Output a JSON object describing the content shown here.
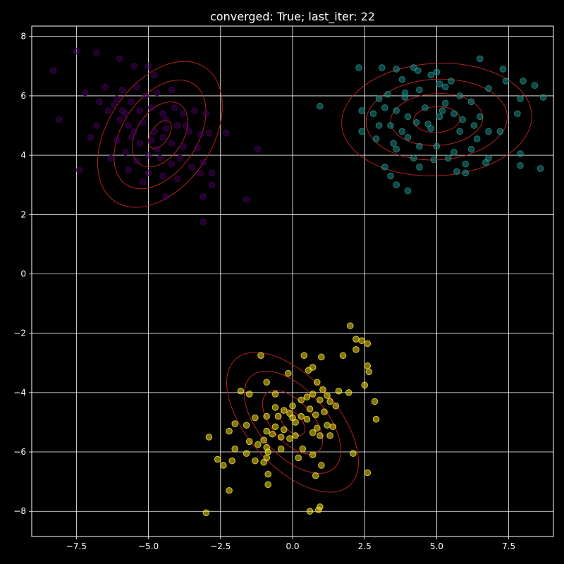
{
  "chart_data": {
    "type": "scatter",
    "title": "converged: True; last_iter: 22",
    "xlabel": "",
    "ylabel": "",
    "xlim": [
      -9.05,
      9.05
    ],
    "ylim": [
      -8.85,
      8.35
    ],
    "xticks": [
      -7.5,
      -5.0,
      -2.5,
      0.0,
      2.5,
      5.0,
      7.5
    ],
    "xtick_labels": [
      "−7.5",
      "−5.0",
      "−2.5",
      "0.0",
      "2.5",
      "5.0",
      "7.5"
    ],
    "yticks": [
      -8,
      -6,
      -4,
      -2,
      0,
      2,
      4,
      6,
      8
    ],
    "ytick_labels": [
      "−8",
      "−6",
      "−4",
      "−2",
      "0",
      "2",
      "4",
      "6",
      "8"
    ],
    "grid": true,
    "background": "#000000",
    "foreground": "#ffffff",
    "contour_color": "#b22222",
    "series": [
      {
        "color": "#440154",
        "points": [
          [
            -8.3,
            6.85
          ],
          [
            -7.5,
            7.5
          ],
          [
            -6.8,
            7.45
          ],
          [
            -6.0,
            7.25
          ],
          [
            -5.5,
            7.0
          ],
          [
            -5.0,
            7.0
          ],
          [
            -4.8,
            6.7
          ],
          [
            -7.2,
            6.1
          ],
          [
            -6.5,
            6.3
          ],
          [
            -5.9,
            6.2
          ],
          [
            -5.4,
            6.3
          ],
          [
            -5.1,
            6.0
          ],
          [
            -4.7,
            6.1
          ],
          [
            -6.7,
            5.8
          ],
          [
            -6.2,
            5.7
          ],
          [
            -5.9,
            5.5
          ],
          [
            -5.6,
            5.8
          ],
          [
            -5.3,
            5.5
          ],
          [
            -4.9,
            5.6
          ],
          [
            -4.5,
            5.4
          ],
          [
            -4.1,
            5.6
          ],
          [
            -3.8,
            5.4
          ],
          [
            -3.4,
            5.5
          ],
          [
            -3.0,
            5.4
          ],
          [
            -8.1,
            5.2
          ],
          [
            -6.8,
            5.0
          ],
          [
            -6.0,
            5.2
          ],
          [
            -5.7,
            5.0
          ],
          [
            -5.2,
            5.1
          ],
          [
            -4.8,
            4.8
          ],
          [
            -4.4,
            4.9
          ],
          [
            -4.0,
            5.0
          ],
          [
            -3.6,
            4.8
          ],
          [
            -3.2,
            4.7
          ],
          [
            -2.9,
            4.75
          ],
          [
            -7.0,
            4.6
          ],
          [
            -6.1,
            4.5
          ],
          [
            -5.6,
            4.6
          ],
          [
            -5.3,
            4.4
          ],
          [
            -4.9,
            4.5
          ],
          [
            -4.5,
            4.6
          ],
          [
            -4.2,
            4.4
          ],
          [
            -3.8,
            4.3
          ],
          [
            -3.3,
            4.25
          ],
          [
            -2.3,
            4.75
          ],
          [
            -1.2,
            4.2
          ],
          [
            -6.3,
            3.9
          ],
          [
            -5.8,
            4.1
          ],
          [
            -5.4,
            3.8
          ],
          [
            -5.0,
            4.0
          ],
          [
            -4.6,
            3.9
          ],
          [
            -4.2,
            3.7
          ],
          [
            -3.9,
            3.9
          ],
          [
            -3.5,
            3.6
          ],
          [
            -3.1,
            3.75
          ],
          [
            -2.8,
            3.4
          ],
          [
            -7.4,
            3.5
          ],
          [
            -5.7,
            3.5
          ],
          [
            -5.0,
            3.4
          ],
          [
            -4.5,
            3.3
          ],
          [
            -4.0,
            3.2
          ],
          [
            -3.2,
            3.4
          ],
          [
            -2.8,
            3.0
          ],
          [
            -5.2,
            3.1
          ],
          [
            -4.4,
            2.6
          ],
          [
            -3.1,
            2.6
          ],
          [
            -1.6,
            2.5
          ],
          [
            -3.1,
            1.75
          ],
          [
            -6.1,
            5.9
          ],
          [
            -4.4,
            5.2
          ],
          [
            -5.5,
            4.8
          ],
          [
            -4.7,
            4.2
          ],
          [
            -5.8,
            5.4
          ],
          [
            -3.7,
            5.0
          ],
          [
            -4.2,
            6.2
          ],
          [
            -6.4,
            5.5
          ]
        ]
      },
      {
        "color": "#21918c",
        "points": [
          [
            2.3,
            6.95
          ],
          [
            3.1,
            6.95
          ],
          [
            3.6,
            6.9
          ],
          [
            4.2,
            6.95
          ],
          [
            4.35,
            6.85
          ],
          [
            5.0,
            6.8
          ],
          [
            6.5,
            7.25
          ],
          [
            7.3,
            6.9
          ],
          [
            7.4,
            6.5
          ],
          [
            8.0,
            6.5
          ],
          [
            8.4,
            6.35
          ],
          [
            4.8,
            6.7
          ],
          [
            5.5,
            6.5
          ],
          [
            3.8,
            6.55
          ],
          [
            5.1,
            6.4
          ],
          [
            3.0,
            5.9
          ],
          [
            3.3,
            6.05
          ],
          [
            3.9,
            6.1
          ],
          [
            4.4,
            6.2
          ],
          [
            5.3,
            6.3
          ],
          [
            5.8,
            6.0
          ],
          [
            6.8,
            6.25
          ],
          [
            7.9,
            5.9
          ],
          [
            8.7,
            5.95
          ],
          [
            2.4,
            5.5
          ],
          [
            2.8,
            5.4
          ],
          [
            3.2,
            5.6
          ],
          [
            3.6,
            5.5
          ],
          [
            4.0,
            5.3
          ],
          [
            4.6,
            5.6
          ],
          [
            5.2,
            5.5
          ],
          [
            5.6,
            5.4
          ],
          [
            6.2,
            5.8
          ],
          [
            6.5,
            5.3
          ],
          [
            7.8,
            5.4
          ],
          [
            0.95,
            5.65
          ],
          [
            2.4,
            4.8
          ],
          [
            3.0,
            5.0
          ],
          [
            3.4,
            5.0
          ],
          [
            3.8,
            4.8
          ],
          [
            4.3,
            5.1
          ],
          [
            4.8,
            4.9
          ],
          [
            5.1,
            5.3
          ],
          [
            5.8,
            4.8
          ],
          [
            6.3,
            5.0
          ],
          [
            6.8,
            4.8
          ],
          [
            7.2,
            4.8
          ],
          [
            2.9,
            4.55
          ],
          [
            3.5,
            4.4
          ],
          [
            4.0,
            4.6
          ],
          [
            4.4,
            4.3
          ],
          [
            5.0,
            4.3
          ],
          [
            5.6,
            4.1
          ],
          [
            6.2,
            4.2
          ],
          [
            6.8,
            3.9
          ],
          [
            3.2,
            3.6
          ],
          [
            3.6,
            4.2
          ],
          [
            4.2,
            3.9
          ],
          [
            4.9,
            3.85
          ],
          [
            5.4,
            3.9
          ],
          [
            6.0,
            3.7
          ],
          [
            6.7,
            3.75
          ],
          [
            3.4,
            3.3
          ],
          [
            4.4,
            3.6
          ],
          [
            5.7,
            3.45
          ],
          [
            6.0,
            3.4
          ],
          [
            7.9,
            3.65
          ],
          [
            8.6,
            3.55
          ],
          [
            3.6,
            3.0
          ],
          [
            4.0,
            2.8
          ],
          [
            7.9,
            4.05
          ],
          [
            5.3,
            5.75
          ],
          [
            4.7,
            5.05
          ],
          [
            5.9,
            5.2
          ],
          [
            3.9,
            5.95
          ],
          [
            6.4,
            4.55
          ]
        ]
      },
      {
        "color": "#fde725",
        "points": [
          [
            2.0,
            -1.75
          ],
          [
            2.2,
            -2.2
          ],
          [
            2.4,
            -2.25
          ],
          [
            2.6,
            -2.35
          ],
          [
            2.2,
            -2.55
          ],
          [
            -1.1,
            -2.75
          ],
          [
            0.4,
            -2.75
          ],
          [
            1.0,
            -2.8
          ],
          [
            1.75,
            -2.75
          ],
          [
            0.7,
            -3.15
          ],
          [
            0.55,
            -3.25
          ],
          [
            2.6,
            -3.1
          ],
          [
            2.65,
            -3.3
          ],
          [
            -0.15,
            -3.35
          ],
          [
            -0.9,
            -3.65
          ],
          [
            0.85,
            -3.65
          ],
          [
            1.6,
            -3.95
          ],
          [
            1.95,
            -4.0
          ],
          [
            2.5,
            -3.75
          ],
          [
            -1.8,
            -3.95
          ],
          [
            -1.5,
            -4.05
          ],
          [
            -0.6,
            -4.05
          ],
          [
            0.7,
            -4.05
          ],
          [
            1.05,
            -3.9
          ],
          [
            1.2,
            -4.1
          ],
          [
            2.85,
            -4.3
          ],
          [
            0.3,
            -4.25
          ],
          [
            0.5,
            -4.15
          ],
          [
            0.95,
            -4.25
          ],
          [
            1.3,
            -4.3
          ],
          [
            -0.6,
            -4.5
          ],
          [
            -0.3,
            -4.6
          ],
          [
            0.0,
            -4.45
          ],
          [
            0.6,
            -4.55
          ],
          [
            1.5,
            -4.45
          ],
          [
            -1.3,
            -4.85
          ],
          [
            -0.9,
            -4.8
          ],
          [
            -0.5,
            -4.8
          ],
          [
            -0.1,
            -4.7
          ],
          [
            0.3,
            -4.8
          ],
          [
            0.8,
            -4.75
          ],
          [
            1.1,
            -4.65
          ],
          [
            2.9,
            -4.9
          ],
          [
            -2.0,
            -5.05
          ],
          [
            -1.6,
            -5.1
          ],
          [
            -0.9,
            -5.3
          ],
          [
            -0.6,
            -5.15
          ],
          [
            -0.3,
            -5.25
          ],
          [
            0.1,
            -5.0
          ],
          [
            0.5,
            -4.9
          ],
          [
            0.85,
            -5.2
          ],
          [
            1.2,
            -5.1
          ],
          [
            1.4,
            -5.15
          ],
          [
            -2.2,
            -5.3
          ],
          [
            -1.0,
            -5.6
          ],
          [
            -0.7,
            -5.4
          ],
          [
            -0.4,
            -5.5
          ],
          [
            0.1,
            -5.45
          ],
          [
            0.7,
            -5.35
          ],
          [
            0.95,
            -5.45
          ],
          [
            1.3,
            -5.45
          ],
          [
            -2.9,
            -5.5
          ],
          [
            -1.5,
            -5.65
          ],
          [
            -1.2,
            -5.75
          ],
          [
            -0.9,
            -5.85
          ],
          [
            -0.4,
            -5.9
          ],
          [
            0.35,
            -5.9
          ],
          [
            -2.0,
            -5.9
          ],
          [
            -0.85,
            -6.0
          ],
          [
            -1.6,
            -6.05
          ],
          [
            -2.1,
            -6.3
          ],
          [
            -1.3,
            -6.3
          ],
          [
            -1.0,
            -6.35
          ],
          [
            -0.9,
            -6.2
          ],
          [
            0.2,
            -6.2
          ],
          [
            0.7,
            -6.1
          ],
          [
            2.1,
            -6.05
          ],
          [
            -2.6,
            -6.25
          ],
          [
            -2.4,
            -6.45
          ],
          [
            1.0,
            -6.45
          ],
          [
            -0.85,
            -6.75
          ],
          [
            0.8,
            -6.8
          ],
          [
            2.6,
            -6.7
          ],
          [
            -0.85,
            -7.1
          ],
          [
            -2.2,
            -7.3
          ],
          [
            -3.0,
            -8.05
          ],
          [
            0.6,
            -8.0
          ],
          [
            0.9,
            -7.95
          ],
          [
            0.95,
            -7.85
          ],
          [
            -0.1,
            -5.55
          ],
          [
            0.0,
            -4.85
          ]
        ]
      }
    ],
    "contours": [
      {
        "center": [
          -4.6,
          4.7
        ],
        "ellipses": [
          {
            "sx": 0.85,
            "sy": 1.0,
            "rx": 0.55,
            "ry": 0.3,
            "angle": -56
          },
          {
            "sx": 1.2,
            "sy": 1.5,
            "rx": 1.25,
            "ry": 0.8,
            "angle": -56
          },
          {
            "sx": 1.8,
            "sy": 2.2,
            "rx": 2.1,
            "ry": 1.3,
            "angle": -56
          },
          {
            "sx": 2.6,
            "sy": 3.1,
            "rx": 2.8,
            "ry": 1.8,
            "angle": -56
          }
        ]
      },
      {
        "center": [
          5.0,
          5.2
        ],
        "ellipses": [
          {
            "sx": 0.8,
            "sy": 0.5,
            "rx": 0.8,
            "ry": 0.45,
            "angle": -3
          },
          {
            "sx": 1.6,
            "sy": 0.95,
            "rx": 1.6,
            "ry": 0.9,
            "angle": -3
          },
          {
            "sx": 2.5,
            "sy": 1.45,
            "rx": 2.45,
            "ry": 1.4,
            "angle": -3
          },
          {
            "sx": 3.3,
            "sy": 1.95,
            "rx": 3.3,
            "ry": 1.95,
            "angle": -3
          }
        ]
      },
      {
        "center": [
          0.0,
          -5.0
        ],
        "ellipses": [
          {
            "sx": 0.7,
            "sy": 0.8,
            "rx": 0.55,
            "ry": 0.3,
            "angle": 48
          },
          {
            "sx": 1.3,
            "sy": 1.5,
            "rx": 1.35,
            "ry": 0.7,
            "angle": 48
          },
          {
            "sx": 2.0,
            "sy": 2.3,
            "rx": 2.15,
            "ry": 1.15,
            "angle": 48
          },
          {
            "sx": 2.5,
            "sy": 2.8,
            "rx": 2.95,
            "ry": 1.55,
            "angle": 48
          }
        ]
      }
    ]
  }
}
